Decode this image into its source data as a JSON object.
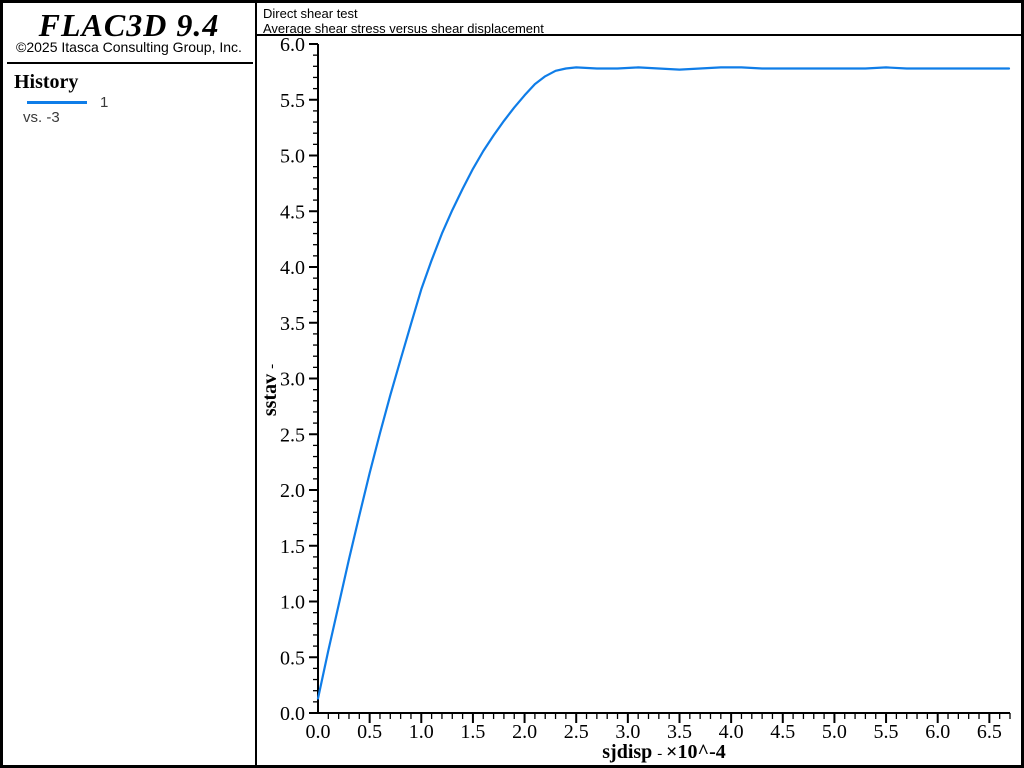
{
  "app": {
    "logo_title": "FLAC3D 9.4",
    "copyright": "©2025 Itasca Consulting Group, Inc."
  },
  "sidebar": {
    "history_heading": "History",
    "legend": [
      {
        "label": "1",
        "color": "#0f7de8"
      }
    ],
    "vs_label": "vs. -3"
  },
  "chart_header": {
    "line1": "Direct shear test",
    "line2": "Average shear stress versus shear displacement"
  },
  "chart_data": {
    "type": "line",
    "title": "Direct shear test",
    "subtitle": "Average shear stress versus shear displacement",
    "xlabel": "sjdisp",
    "xlabel_dash": "-",
    "xlabel_scale": "×10^-4",
    "ylabel": "sstav",
    "ylabel_dash": "-",
    "xlim": [
      0,
      6.7
    ],
    "ylim": [
      0,
      6.0
    ],
    "x_major_step": 0.5,
    "x_minor_step": 0.1,
    "x_label_max": 6.5,
    "y_major_step": 0.5,
    "y_minor_step": 0.1,
    "grid": false,
    "legend_position": "left-panel",
    "line_color": "#0f7de8",
    "axis_color": "#000000",
    "series": [
      {
        "name": "1",
        "x": [
          0.0,
          0.1,
          0.2,
          0.3,
          0.4,
          0.5,
          0.6,
          0.7,
          0.8,
          0.9,
          1.0,
          1.1,
          1.2,
          1.3,
          1.4,
          1.5,
          1.6,
          1.7,
          1.8,
          1.9,
          2.0,
          2.1,
          2.2,
          2.3,
          2.4,
          2.5,
          2.7,
          2.9,
          3.1,
          3.3,
          3.5,
          3.7,
          3.9,
          4.1,
          4.3,
          4.5,
          4.7,
          4.9,
          5.1,
          5.3,
          5.5,
          5.7,
          5.9,
          6.1,
          6.3,
          6.5,
          6.69
        ],
        "y": [
          0.13,
          0.56,
          0.97,
          1.38,
          1.77,
          2.15,
          2.51,
          2.85,
          3.17,
          3.49,
          3.8,
          4.06,
          4.3,
          4.51,
          4.7,
          4.88,
          5.04,
          5.18,
          5.31,
          5.43,
          5.54,
          5.64,
          5.71,
          5.76,
          5.78,
          5.79,
          5.78,
          5.78,
          5.79,
          5.78,
          5.77,
          5.78,
          5.79,
          5.79,
          5.78,
          5.78,
          5.78,
          5.78,
          5.78,
          5.78,
          5.79,
          5.78,
          5.78,
          5.78,
          5.78,
          5.78,
          5.78
        ]
      }
    ]
  }
}
